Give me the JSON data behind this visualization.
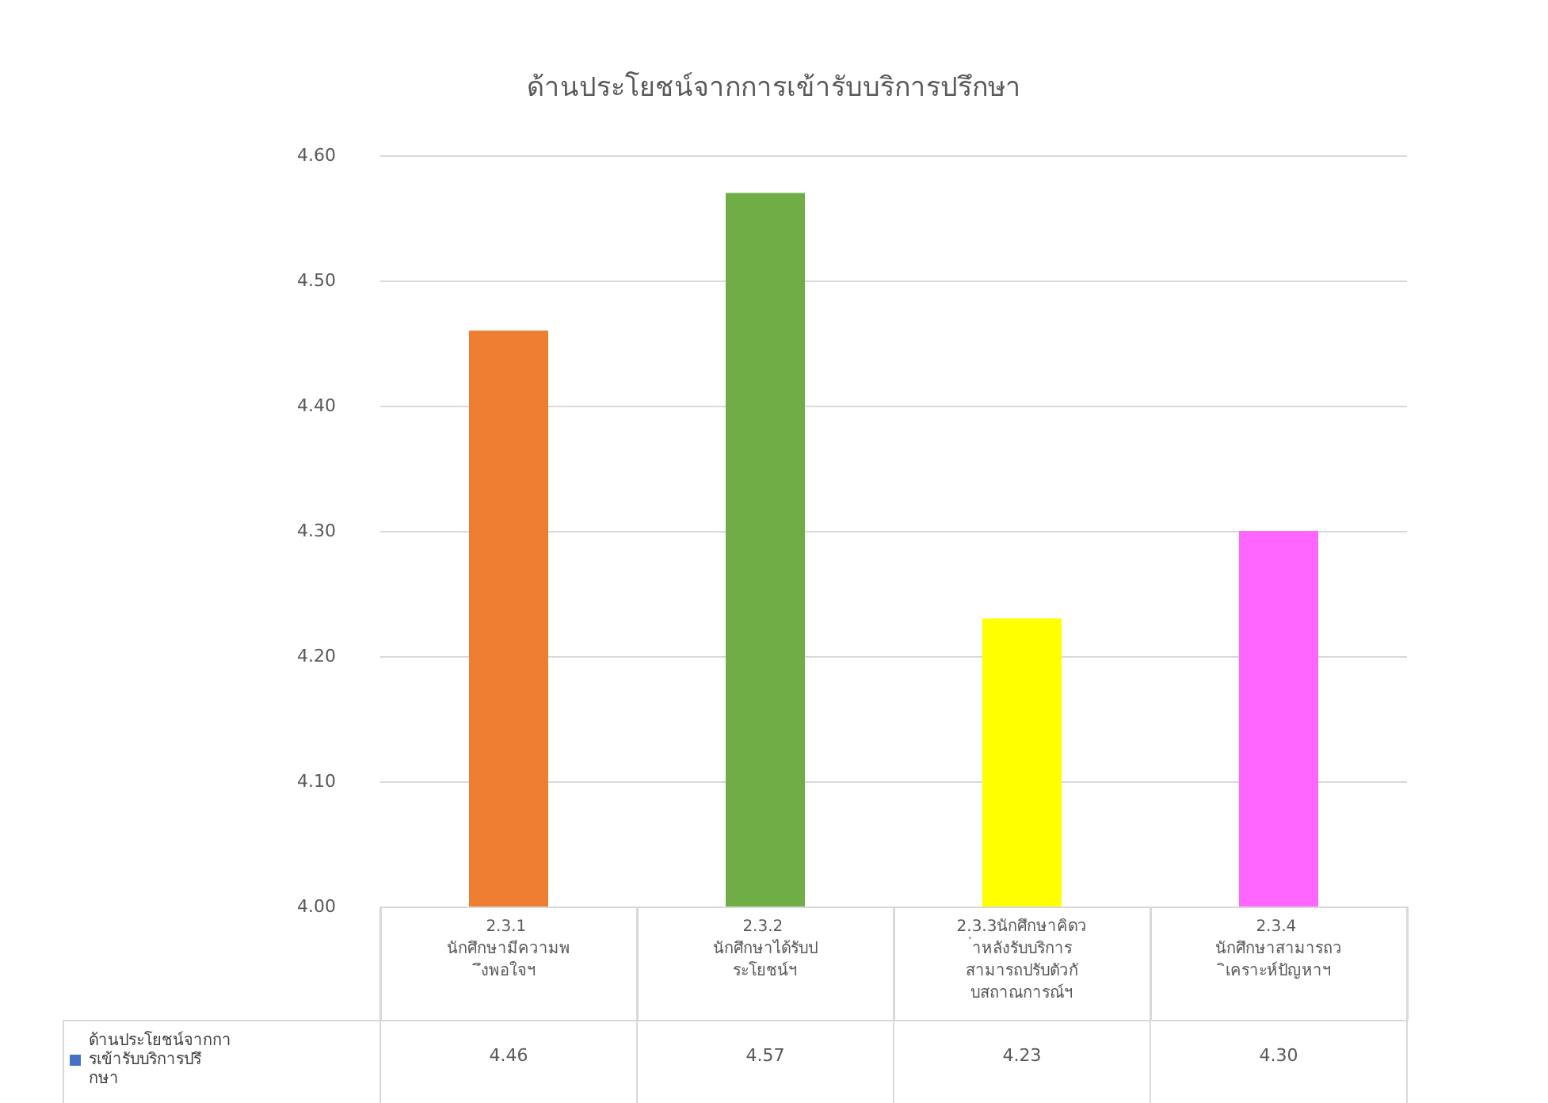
{
  "chart_data": {
    "type": "bar",
    "title": "ด้านประโยชน์จากการเข้ารับบริการปรึกษา",
    "categories": [
      "2.3.1 นักศึกษามีความพึงพอใจฯ",
      "2.3.2 นักศึกษาได้รับประโยชน์ฯ",
      "2.3.3นักศึกษาคิดว่าหลังรับบริการสามารถปรับตัวกับสถาณการณ์ฯ",
      "2.3.4 นักศึกษาสามารถวิเคราะห์ปัญหาฯ"
    ],
    "series": [
      {
        "name": "ด้านประโยชน์จากการเข้ารับบริการปรึกษา",
        "color": "#4472c4",
        "colors": [
          "#ed7d31",
          "#70ad47",
          "#ffff00",
          "#ff66ff"
        ],
        "values": [
          4.46,
          4.57,
          4.23,
          4.3
        ],
        "value_labels": [
          "4.46",
          "4.57",
          "4.23",
          "4.30"
        ]
      }
    ],
    "ylim": [
      4.0,
      4.6
    ],
    "yticks": [
      {
        "value": 4.0,
        "label": "4.00"
      },
      {
        "value": 4.1,
        "label": "4.10"
      },
      {
        "value": 4.2,
        "label": "4.20"
      },
      {
        "value": 4.3,
        "label": "4.30"
      },
      {
        "value": 4.4,
        "label": "4.40"
      },
      {
        "value": 4.5,
        "label": "4.50"
      },
      {
        "value": 4.6,
        "label": "4.60"
      }
    ],
    "grid": "y",
    "legend": "bottom left"
  }
}
